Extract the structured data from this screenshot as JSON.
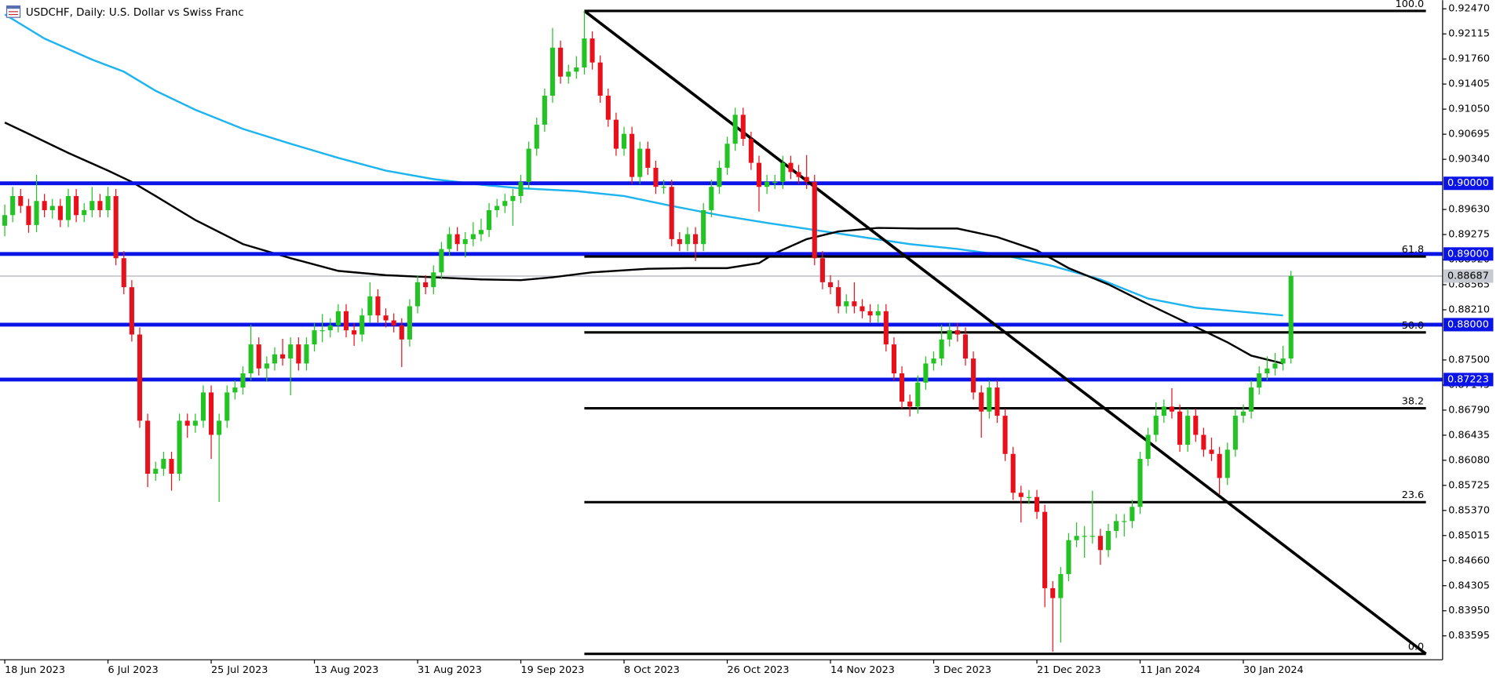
{
  "chart_data": {
    "type": "candlestick",
    "title": "USDCHF, Daily:  U.S. Dollar vs Swiss Franc",
    "up_color": "#22c322",
    "down_color": "#e8101a",
    "xlim": [
      -0.6,
      181.1
    ],
    "ylim": [
      0.83257,
      0.92592
    ],
    "xticks": [
      {
        "value": 0,
        "label": "18 Jun 2023"
      },
      {
        "value": 13,
        "label": "6 Jul 2023"
      },
      {
        "value": 26,
        "label": "25 Jul 2023"
      },
      {
        "value": 39,
        "label": "13 Aug 2023"
      },
      {
        "value": 52,
        "label": "31 Aug 2023"
      },
      {
        "value": 65,
        "label": "19 Sep 2023"
      },
      {
        "value": 78,
        "label": "8 Oct 2023"
      },
      {
        "value": 91,
        "label": "26 Oct 2023"
      },
      {
        "value": 104,
        "label": "14 Nov 2023"
      },
      {
        "value": 117,
        "label": "3 Dec 2023"
      },
      {
        "value": 130,
        "label": "21 Dec 2023"
      },
      {
        "value": 143,
        "label": "11 Jan 2024"
      },
      {
        "value": 156,
        "label": "30 Jan 2024"
      }
    ],
    "yticks": [
      {
        "value": 0.9247,
        "label": "0.92470"
      },
      {
        "value": 0.92115,
        "label": "0.92115"
      },
      {
        "value": 0.9176,
        "label": "0.91760"
      },
      {
        "value": 0.91405,
        "label": "0.91405"
      },
      {
        "value": 0.9105,
        "label": "0.91050"
      },
      {
        "value": 0.90695,
        "label": "0.90695"
      },
      {
        "value": 0.9034,
        "label": "0.90340"
      },
      {
        "value": 0.8963,
        "label": "0.89630"
      },
      {
        "value": 0.89275,
        "label": "0.89275"
      },
      {
        "value": 0.8892,
        "label": "0.88920"
      },
      {
        "value": 0.88565,
        "label": "0.88565"
      },
      {
        "value": 0.8821,
        "label": "0.88210"
      },
      {
        "value": 0.875,
        "label": "0.87500"
      },
      {
        "value": 0.87145,
        "label": "0.87145"
      },
      {
        "value": 0.8679,
        "label": "0.86790"
      },
      {
        "value": 0.86435,
        "label": "0.86435"
      },
      {
        "value": 0.8608,
        "label": "0.86080"
      },
      {
        "value": 0.85725,
        "label": "0.85725"
      },
      {
        "value": 0.8537,
        "label": "0.85370"
      },
      {
        "value": 0.85015,
        "label": "0.85015"
      },
      {
        "value": 0.8466,
        "label": "0.84660"
      },
      {
        "value": 0.84305,
        "label": "0.84305"
      },
      {
        "value": 0.8395,
        "label": "0.83950"
      },
      {
        "value": 0.83595,
        "label": "0.83595"
      }
    ],
    "open": [
      0.894,
      0.8955,
      0.8982,
      0.8968,
      0.8941,
      0.8975,
      0.8962,
      0.8968,
      0.8948,
      0.8982,
      0.8955,
      0.8962,
      0.8975,
      0.8962,
      0.8982,
      0.8894,
      0.8853,
      0.8786,
      0.8664,
      0.8589,
      0.8596,
      0.861,
      0.8589,
      0.8664,
      0.8657,
      0.8664,
      0.8704,
      0.8644,
      0.8664,
      0.8704,
      0.8711,
      0.8731,
      0.8772,
      0.8738,
      0.8745,
      0.8758,
      0.8752,
      0.8772,
      0.8745,
      0.8772,
      0.8792,
      0.8792,
      0.8799,
      0.8819,
      0.8792,
      0.8786,
      0.8813,
      0.884,
      0.8813,
      0.8806,
      0.8799,
      0.8779,
      0.8826,
      0.886,
      0.8853,
      0.8874,
      0.8907,
      0.8928,
      0.8914,
      0.8921,
      0.8928,
      0.8934,
      0.8962,
      0.8968,
      0.8975,
      0.8982,
      0.9002,
      0.9049,
      0.9083,
      0.9124,
      0.9192,
      0.9151,
      0.9158,
      0.9164,
      0.9205,
      0.9171,
      0.9124,
      0.909,
      0.9049,
      0.907,
      0.9009,
      0.9049,
      0.9022,
      0.8995,
      0.8995,
      0.8921,
      0.8914,
      0.8928,
      0.8914,
      0.8962,
      0.8995,
      0.9022,
      0.9056,
      0.9097,
      0.9063,
      0.9029,
      0.8995,
      0.9002,
      0.9002,
      0.9029,
      0.9016,
      0.9009,
      0.9002,
      0.8894,
      0.886,
      0.8853,
      0.8826,
      0.8833,
      0.8826,
      0.8819,
      0.8813,
      0.8819,
      0.8772,
      0.8731,
      0.8691,
      0.8684,
      0.8718,
      0.8745,
      0.8752,
      0.8779,
      0.8792,
      0.8786,
      0.8752,
      0.8704,
      0.8677,
      0.8711,
      0.8671,
      0.8617,
      0.8562,
      0.8556,
      0.8556,
      0.8535,
      0.8427,
      0.8413,
      0.8447,
      0.8495,
      0.8501,
      0.8501,
      0.8501,
      0.8481,
      0.8508,
      0.8522,
      0.8522,
      0.8542,
      0.861,
      0.8644,
      0.8671,
      0.8684,
      0.8677,
      0.863,
      0.8671,
      0.8644,
      0.8623,
      0.8617,
      0.8583,
      0.8623,
      0.8671,
      0.8677,
      0.8711,
      0.8731,
      0.8738,
      0.8745,
      0.8752
    ],
    "high": [
      0.897,
      0.8995,
      0.8992,
      0.8978,
      0.9012,
      0.8985,
      0.8978,
      0.8978,
      0.8992,
      0.8992,
      0.8972,
      0.8995,
      0.8985,
      0.8995,
      0.8992,
      0.8904,
      0.8863,
      0.8796,
      0.8674,
      0.8606,
      0.862,
      0.862,
      0.8674,
      0.8674,
      0.8674,
      0.8714,
      0.8714,
      0.8674,
      0.8714,
      0.8721,
      0.8741,
      0.88,
      0.8782,
      0.8755,
      0.8768,
      0.878,
      0.8782,
      0.8782,
      0.8782,
      0.8802,
      0.8815,
      0.8809,
      0.8829,
      0.8829,
      0.8802,
      0.8823,
      0.886,
      0.885,
      0.8823,
      0.8816,
      0.8809,
      0.8836,
      0.887,
      0.887,
      0.8884,
      0.8917,
      0.8938,
      0.8938,
      0.8931,
      0.8945,
      0.895,
      0.8972,
      0.8978,
      0.8985,
      0.8992,
      0.9012,
      0.9059,
      0.9093,
      0.9134,
      0.922,
      0.9202,
      0.9168,
      0.918,
      0.9244,
      0.9215,
      0.9181,
      0.9134,
      0.91,
      0.908,
      0.908,
      0.9059,
      0.9059,
      0.9032,
      0.9005,
      0.9005,
      0.8931,
      0.8938,
      0.8938,
      0.8972,
      0.9005,
      0.9032,
      0.9066,
      0.9107,
      0.9107,
      0.9073,
      0.9039,
      0.9012,
      0.9012,
      0.9039,
      0.9039,
      0.9026,
      0.904,
      0.9012,
      0.8904,
      0.887,
      0.8863,
      0.8843,
      0.886,
      0.8836,
      0.8829,
      0.8829,
      0.8829,
      0.8782,
      0.8741,
      0.8701,
      0.8728,
      0.8755,
      0.8762,
      0.88,
      0.8802,
      0.8802,
      0.8796,
      0.8762,
      0.8714,
      0.8721,
      0.8721,
      0.8681,
      0.8627,
      0.8572,
      0.8566,
      0.8566,
      0.8545,
      0.8437,
      0.8457,
      0.8505,
      0.852,
      0.8515,
      0.8565,
      0.8511,
      0.8518,
      0.8532,
      0.8532,
      0.8552,
      0.862,
      0.8654,
      0.869,
      0.8694,
      0.871,
      0.8687,
      0.8681,
      0.8681,
      0.8654,
      0.864,
      0.8627,
      0.8633,
      0.8681,
      0.8687,
      0.8721,
      0.8741,
      0.8755,
      0.876,
      0.877,
      0.8876
    ],
    "low": [
      0.8925,
      0.8945,
      0.8958,
      0.893,
      0.8931,
      0.8952,
      0.895,
      0.8938,
      0.8938,
      0.8945,
      0.8945,
      0.8952,
      0.8952,
      0.8952,
      0.8884,
      0.8843,
      0.8776,
      0.8654,
      0.857,
      0.8579,
      0.8586,
      0.8565,
      0.8579,
      0.864,
      0.8647,
      0.8654,
      0.861,
      0.8549,
      0.8654,
      0.8694,
      0.8701,
      0.8721,
      0.8728,
      0.872,
      0.8735,
      0.8742,
      0.87,
      0.8735,
      0.8735,
      0.8762,
      0.8775,
      0.8782,
      0.8789,
      0.8782,
      0.877,
      0.8776,
      0.8803,
      0.8803,
      0.8796,
      0.8789,
      0.874,
      0.8769,
      0.8816,
      0.8843,
      0.8843,
      0.8864,
      0.8897,
      0.8904,
      0.8895,
      0.8911,
      0.8918,
      0.8924,
      0.8952,
      0.8958,
      0.894,
      0.8972,
      0.8992,
      0.9039,
      0.9073,
      0.9114,
      0.9141,
      0.9141,
      0.9148,
      0.9154,
      0.9161,
      0.9114,
      0.908,
      0.9039,
      0.9039,
      0.8999,
      0.8999,
      0.9012,
      0.8985,
      0.8985,
      0.8911,
      0.8904,
      0.8904,
      0.889,
      0.8904,
      0.8952,
      0.8985,
      0.9012,
      0.9046,
      0.9053,
      0.9019,
      0.896,
      0.8985,
      0.8992,
      0.8992,
      0.9006,
      0.8999,
      0.8992,
      0.8884,
      0.885,
      0.8843,
      0.8816,
      0.8816,
      0.8816,
      0.8809,
      0.8803,
      0.8803,
      0.8762,
      0.8721,
      0.8681,
      0.867,
      0.8674,
      0.8708,
      0.8735,
      0.8742,
      0.8769,
      0.8776,
      0.8742,
      0.8694,
      0.864,
      0.8667,
      0.8661,
      0.8607,
      0.8552,
      0.852,
      0.8546,
      0.8525,
      0.84,
      0.8337,
      0.835,
      0.8437,
      0.8485,
      0.847,
      0.849,
      0.846,
      0.8471,
      0.8498,
      0.85,
      0.8512,
      0.8532,
      0.86,
      0.8634,
      0.8661,
      0.8667,
      0.862,
      0.862,
      0.8634,
      0.8613,
      0.8607,
      0.856,
      0.8573,
      0.8613,
      0.8661,
      0.8667,
      0.8701,
      0.8721,
      0.8728,
      0.8735,
      0.8745
    ],
    "close": [
      0.8955,
      0.8982,
      0.8968,
      0.8941,
      0.8975,
      0.8962,
      0.8968,
      0.8948,
      0.8982,
      0.8955,
      0.8962,
      0.8975,
      0.8962,
      0.8982,
      0.8894,
      0.8853,
      0.8786,
      0.8664,
      0.8589,
      0.8596,
      0.861,
      0.8589,
      0.8664,
      0.8657,
      0.8664,
      0.8704,
      0.8644,
      0.8664,
      0.8704,
      0.8711,
      0.8731,
      0.8772,
      0.8738,
      0.8745,
      0.8758,
      0.8752,
      0.8772,
      0.8745,
      0.8772,
      0.8792,
      0.8792,
      0.8799,
      0.8819,
      0.8792,
      0.8786,
      0.8813,
      0.884,
      0.8813,
      0.8806,
      0.8799,
      0.8779,
      0.8826,
      0.886,
      0.8853,
      0.8874,
      0.8907,
      0.8928,
      0.8914,
      0.8921,
      0.8928,
      0.8934,
      0.8962,
      0.8968,
      0.8975,
      0.8982,
      0.9002,
      0.9049,
      0.9083,
      0.9124,
      0.9192,
      0.9151,
      0.9158,
      0.9164,
      0.9205,
      0.9171,
      0.9124,
      0.909,
      0.9049,
      0.907,
      0.9009,
      0.9049,
      0.9022,
      0.8995,
      0.8995,
      0.8921,
      0.8914,
      0.8928,
      0.8914,
      0.8962,
      0.8995,
      0.9022,
      0.9056,
      0.9097,
      0.9063,
      0.9029,
      0.8995,
      0.9002,
      0.9002,
      0.9029,
      0.9016,
      0.9009,
      0.9002,
      0.8894,
      0.886,
      0.8853,
      0.8826,
      0.8833,
      0.8826,
      0.8819,
      0.8813,
      0.8819,
      0.8772,
      0.8731,
      0.8691,
      0.8684,
      0.8718,
      0.8745,
      0.8752,
      0.8779,
      0.8792,
      0.8786,
      0.8752,
      0.8704,
      0.8677,
      0.8711,
      0.8671,
      0.8617,
      0.8562,
      0.8556,
      0.8556,
      0.8535,
      0.8427,
      0.8413,
      0.8447,
      0.8495,
      0.8501,
      0.8501,
      0.8501,
      0.8481,
      0.8508,
      0.8522,
      0.8522,
      0.8542,
      0.861,
      0.8644,
      0.8671,
      0.8684,
      0.8677,
      0.863,
      0.8671,
      0.8644,
      0.8623,
      0.8617,
      0.8583,
      0.8623,
      0.8671,
      0.8677,
      0.8711,
      0.8731,
      0.8738,
      0.8745,
      0.8752,
      0.8869
    ],
    "moving_averages": [
      {
        "color": "#1eb4f0",
        "x": [
          0,
          5,
          11,
          15,
          19,
          24,
          30,
          36,
          42,
          48,
          54,
          60,
          65,
          72,
          78,
          84,
          90,
          96,
          102,
          108,
          114,
          120,
          126,
          132,
          138,
          144,
          150,
          156,
          161
        ],
        "values": [
          0.9239,
          0.9205,
          0.9175,
          0.9158,
          0.9131,
          0.9104,
          0.9077,
          0.9056,
          0.9036,
          0.9018,
          0.9006,
          0.8998,
          0.8993,
          0.8989,
          0.8982,
          0.8968,
          0.8955,
          0.8944,
          0.8934,
          0.8924,
          0.8914,
          0.8907,
          0.8898,
          0.8883,
          0.8864,
          0.8837,
          0.8824,
          0.8818,
          0.8813
        ]
      },
      {
        "color": "#000000",
        "x": [
          0,
          3,
          8,
          13,
          16,
          19,
          24,
          30,
          36,
          42,
          48,
          54,
          60,
          65,
          69,
          74,
          81,
          86,
          91,
          95,
          97,
          101,
          105,
          110,
          115,
          120,
          125,
          130,
          134,
          139,
          144,
          149,
          154,
          157,
          161
        ],
        "values": [
          0.9086,
          0.907,
          0.9043,
          0.9018,
          0.9002,
          0.8982,
          0.8948,
          0.8914,
          0.8894,
          0.8876,
          0.887,
          0.8867,
          0.8864,
          0.8863,
          0.8867,
          0.8874,
          0.8879,
          0.888,
          0.888,
          0.8887,
          0.8901,
          0.8921,
          0.8932,
          0.8937,
          0.8936,
          0.8936,
          0.8924,
          0.8905,
          0.888,
          0.8857,
          0.8829,
          0.8802,
          0.8775,
          0.8756,
          0.8745
        ]
      }
    ],
    "levels": [
      {
        "value": 0.9,
        "label": "0.90000",
        "color": "#0a14e6"
      },
      {
        "value": 0.89,
        "label": "0.89000",
        "color": "#0a14e6"
      },
      {
        "value": 0.88,
        "label": "0.88000",
        "color": "#0a14e6"
      },
      {
        "value": 0.87223,
        "label": "0.87223",
        "color": "#0a14e6"
      }
    ],
    "current_price": {
      "value": 0.88687,
      "label": "0.88687"
    },
    "fibonacci": {
      "x": [
        73,
        179
      ],
      "high": 0.9244,
      "low": 0.8334,
      "levels": [
        {
          "value": 100,
          "label": "100.0"
        },
        61.8,
        {
          "value": 50,
          "label": "50.0"
        },
        38.2,
        23.6,
        {
          "value": 0,
          "label": "0.0"
        }
      ]
    }
  }
}
